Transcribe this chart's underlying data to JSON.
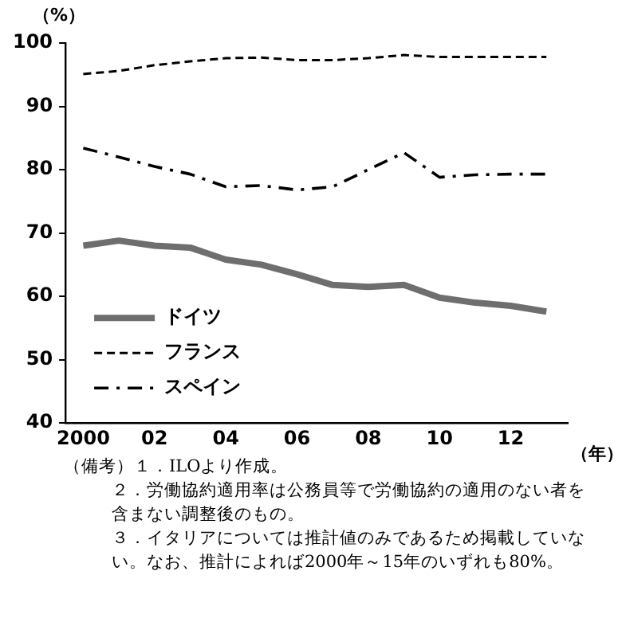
{
  "chart_data": {
    "type": "line",
    "ylabel": "（%）",
    "xlabel": "（年）",
    "x": [
      2000,
      2001,
      2002,
      2003,
      2004,
      2005,
      2006,
      2007,
      2008,
      2009,
      2010,
      2011,
      2012,
      2013
    ],
    "xlim": [
      1999.5,
      2013.6
    ],
    "xticks": [
      2000,
      {
        "value": 2002,
        "label": "02"
      },
      {
        "value": 2004,
        "label": "04"
      },
      {
        "value": 2006,
        "label": "06"
      },
      {
        "value": 2008,
        "label": "08"
      },
      {
        "value": 2010,
        "label": "10"
      },
      {
        "value": 2012,
        "label": "12"
      }
    ],
    "ylim": [
      40,
      100
    ],
    "yticks": [
      40,
      50,
      60,
      70,
      80,
      90,
      100
    ],
    "series": [
      {
        "name": "ドイツ",
        "color": "#6e6e6e",
        "line_style": "solid",
        "values": [
          68,
          68.8,
          68,
          67.7,
          65.8,
          65,
          63.5,
          61.8,
          61.5,
          61.8,
          59.8,
          59,
          58.5,
          57.6
        ]
      },
      {
        "name": "フランス",
        "color": "#000000",
        "line_style": "dashed",
        "values": [
          95.1,
          95.6,
          96.5,
          97.1,
          97.6,
          97.7,
          97.3,
          97.3,
          97.6,
          98.1,
          97.8,
          97.8,
          97.8,
          97.8
        ]
      },
      {
        "name": "スペイン",
        "color": "#000000",
        "line_style": "dashdot",
        "values": [
          83.4,
          82,
          80.5,
          79.3,
          77.3,
          77.5,
          76.8,
          77.3,
          80,
          82.7,
          78.8,
          79.2,
          79.3,
          79.3
        ]
      }
    ],
    "grid": false,
    "legend": "bottom left",
    "marker": "none",
    "annotations": [
      "（備考）１．ILOより作成。",
      "２．労働協約適用率は公務員等で労働協約の適用のない者を含まない調整後のもの。",
      "３．イタリアについては推計値のみであるため掲載していない。なお、推計によれば2000年～15年のいずれも80%。"
    ]
  }
}
